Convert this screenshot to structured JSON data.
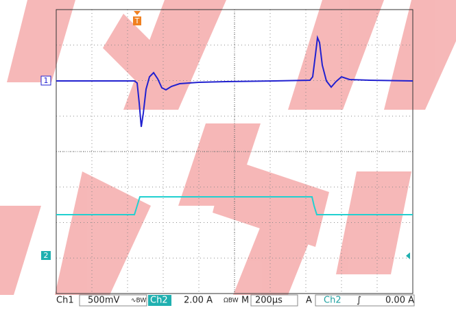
{
  "markers": {
    "ch1": "1",
    "ch2": "2",
    "trigger": "T"
  },
  "status": {
    "ch1_label": "Ch1",
    "ch1_scale": "500mV",
    "ch1_icon": "∿BW",
    "ch2_label": "Ch2",
    "ch2_scale": "2.00 A",
    "ch2_icon": "ΩBW",
    "time_label": "M",
    "time_scale": "200µs",
    "trig_label": "A",
    "trig_source": "Ch2",
    "trig_slope": "∫",
    "trig_level": "0.00 A"
  }
}
